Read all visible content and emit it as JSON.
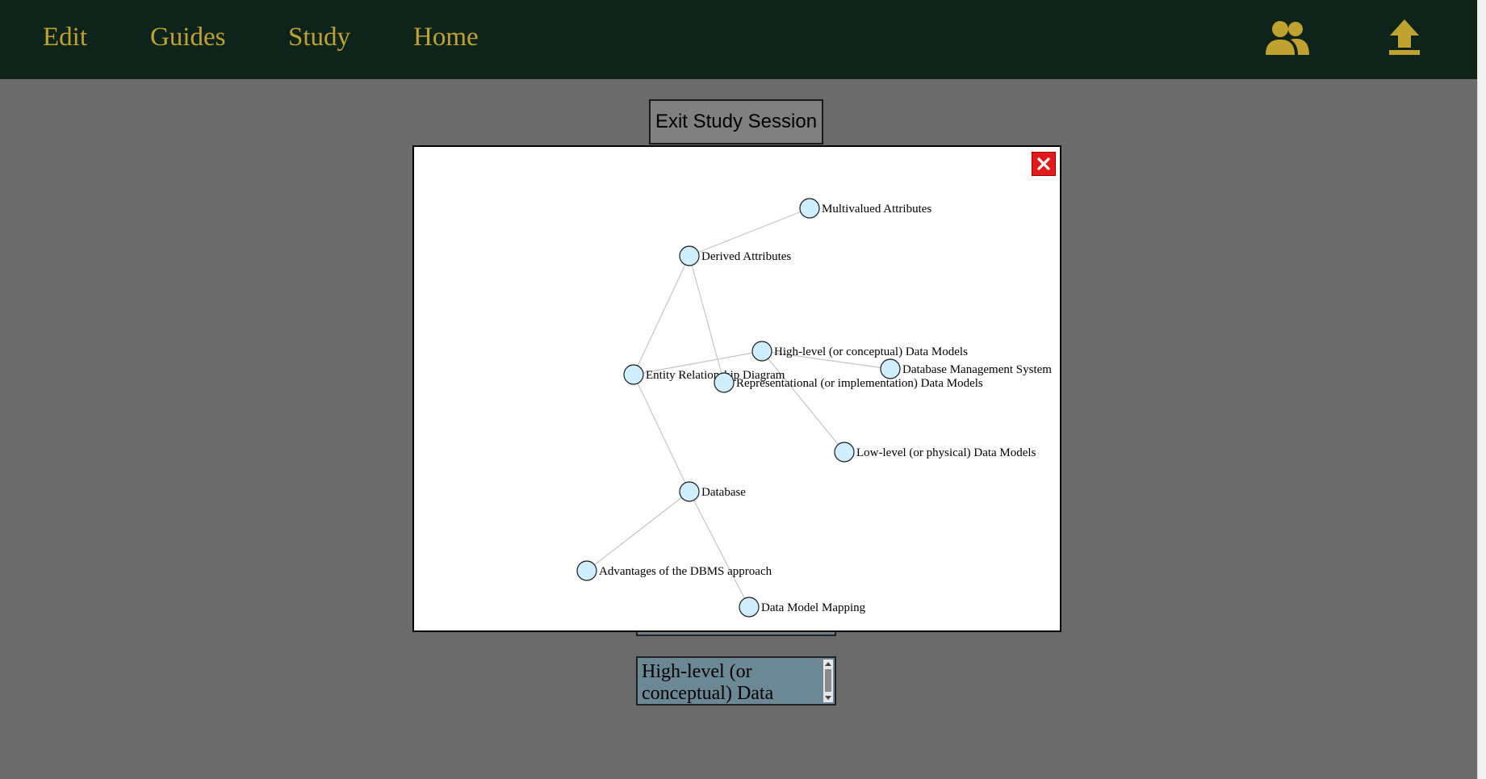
{
  "nav": {
    "links": [
      "Edit",
      "Guides",
      "Study",
      "Home"
    ],
    "icons": [
      "users-icon",
      "upload-icon"
    ],
    "accent_color": "#bfa22f",
    "background_color": "#0e241b"
  },
  "study": {
    "exit_label": "Exit Study Session",
    "answer_text": "High-level (or conceptual) Data"
  },
  "modal": {
    "close_icon": "close-icon",
    "graph": {
      "nodes": [
        "Multivalued Attributes",
        "Derived Attributes",
        "High-level (or conceptual) Data Models",
        "Database Management System",
        "Entity Relationship Diagram",
        "Representational (or implementation) Data Models",
        "Low-level (or physical) Data Models",
        "Database",
        "Advantages of the DBMS approach",
        "Data Model Mapping"
      ],
      "edges": [
        [
          "Derived Attributes",
          "Multivalued Attributes"
        ],
        [
          "Derived Attributes",
          "Entity Relationship Diagram"
        ],
        [
          "Derived Attributes",
          "Representational (or implementation) Data Models"
        ],
        [
          "Entity Relationship Diagram",
          "High-level (or conceptual) Data Models"
        ],
        [
          "High-level (or conceptual) Data Models",
          "Database Management System"
        ],
        [
          "High-level (or conceptual) Data Models",
          "Low-level (or physical) Data Models"
        ],
        [
          "Entity Relationship Diagram",
          "Database"
        ],
        [
          "Database",
          "Advantages of the DBMS approach"
        ],
        [
          "Database",
          "Data Model Mapping"
        ]
      ],
      "node_fill": "#cfefff"
    }
  }
}
